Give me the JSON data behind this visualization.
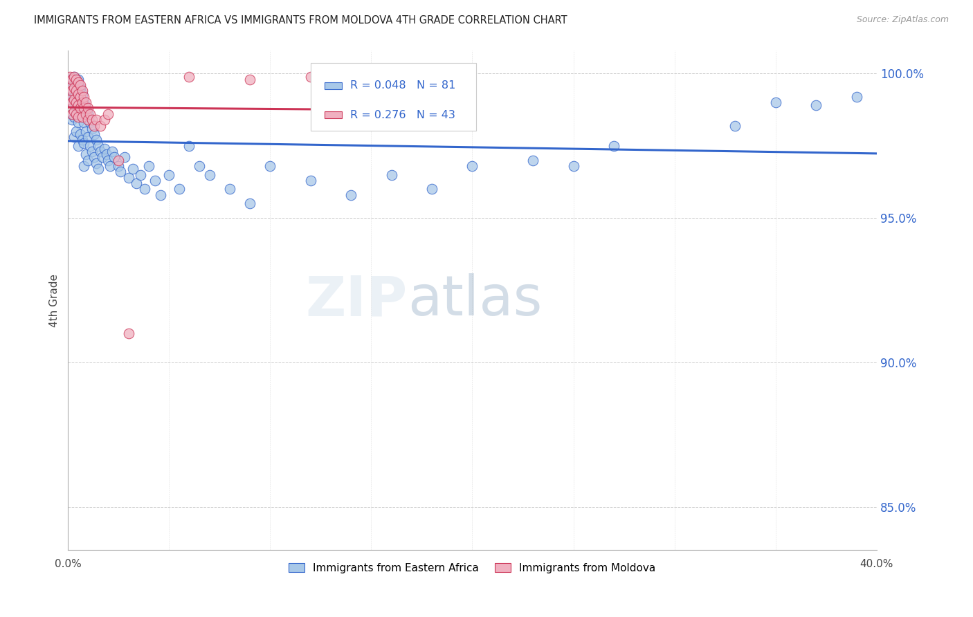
{
  "title": "IMMIGRANTS FROM EASTERN AFRICA VS IMMIGRANTS FROM MOLDOVA 4TH GRADE CORRELATION CHART",
  "source": "Source: ZipAtlas.com",
  "ylabel": "4th Grade",
  "xlim": [
    0.0,
    0.4
  ],
  "ylim": [
    0.835,
    1.008
  ],
  "y_ticks": [
    0.85,
    0.9,
    0.95,
    1.0
  ],
  "x_ticks": [
    0.0,
    0.05,
    0.1,
    0.15,
    0.2,
    0.25,
    0.3,
    0.35,
    0.4
  ],
  "r_blue": 0.048,
  "n_blue": 81,
  "r_pink": 0.276,
  "n_pink": 43,
  "legend_label_blue": "Immigrants from Eastern Africa",
  "legend_label_pink": "Immigrants from Moldova",
  "blue_color": "#a8c8e8",
  "pink_color": "#f0b0c0",
  "line_blue_color": "#3366cc",
  "line_pink_color": "#cc3355",
  "watermark_zip": "ZIP",
  "watermark_atlas": "atlas",
  "blue_scatter_x": [
    0.001,
    0.001,
    0.002,
    0.002,
    0.002,
    0.003,
    0.003,
    0.003,
    0.003,
    0.004,
    0.004,
    0.004,
    0.005,
    0.005,
    0.005,
    0.005,
    0.006,
    0.006,
    0.006,
    0.007,
    0.007,
    0.007,
    0.008,
    0.008,
    0.008,
    0.008,
    0.009,
    0.009,
    0.009,
    0.01,
    0.01,
    0.01,
    0.011,
    0.011,
    0.012,
    0.012,
    0.013,
    0.013,
    0.014,
    0.014,
    0.015,
    0.015,
    0.016,
    0.017,
    0.018,
    0.019,
    0.02,
    0.021,
    0.022,
    0.023,
    0.025,
    0.026,
    0.028,
    0.03,
    0.032,
    0.034,
    0.036,
    0.038,
    0.04,
    0.043,
    0.046,
    0.05,
    0.055,
    0.06,
    0.065,
    0.07,
    0.08,
    0.09,
    0.1,
    0.12,
    0.14,
    0.16,
    0.18,
    0.2,
    0.23,
    0.25,
    0.27,
    0.33,
    0.35,
    0.37,
    0.39
  ],
  "blue_scatter_y": [
    0.998,
    0.993,
    0.997,
    0.99,
    0.984,
    0.999,
    0.992,
    0.985,
    0.978,
    0.996,
    0.988,
    0.98,
    0.998,
    0.99,
    0.983,
    0.975,
    0.995,
    0.987,
    0.979,
    0.993,
    0.985,
    0.977,
    0.99,
    0.983,
    0.976,
    0.968,
    0.988,
    0.98,
    0.972,
    0.986,
    0.978,
    0.97,
    0.983,
    0.975,
    0.981,
    0.973,
    0.979,
    0.971,
    0.977,
    0.969,
    0.975,
    0.967,
    0.973,
    0.971,
    0.974,
    0.972,
    0.97,
    0.968,
    0.973,
    0.971,
    0.968,
    0.966,
    0.971,
    0.964,
    0.967,
    0.962,
    0.965,
    0.96,
    0.968,
    0.963,
    0.958,
    0.965,
    0.96,
    0.975,
    0.968,
    0.965,
    0.96,
    0.955,
    0.968,
    0.963,
    0.958,
    0.965,
    0.96,
    0.968,
    0.97,
    0.968,
    0.975,
    0.982,
    0.99,
    0.989,
    0.992
  ],
  "pink_scatter_x": [
    0.001,
    0.001,
    0.001,
    0.002,
    0.002,
    0.002,
    0.002,
    0.003,
    0.003,
    0.003,
    0.003,
    0.004,
    0.004,
    0.004,
    0.004,
    0.005,
    0.005,
    0.005,
    0.005,
    0.006,
    0.006,
    0.006,
    0.007,
    0.007,
    0.007,
    0.008,
    0.008,
    0.009,
    0.009,
    0.01,
    0.01,
    0.011,
    0.012,
    0.013,
    0.014,
    0.016,
    0.018,
    0.02,
    0.025,
    0.03,
    0.06,
    0.09,
    0.12
  ],
  "pink_scatter_y": [
    0.999,
    0.995,
    0.991,
    0.998,
    0.994,
    0.99,
    0.986,
    0.999,
    0.995,
    0.991,
    0.987,
    0.998,
    0.994,
    0.99,
    0.986,
    0.997,
    0.993,
    0.989,
    0.985,
    0.996,
    0.992,
    0.988,
    0.994,
    0.99,
    0.985,
    0.992,
    0.988,
    0.99,
    0.986,
    0.988,
    0.984,
    0.986,
    0.984,
    0.982,
    0.984,
    0.982,
    0.984,
    0.986,
    0.97,
    0.91,
    0.999,
    0.998,
    0.999
  ]
}
